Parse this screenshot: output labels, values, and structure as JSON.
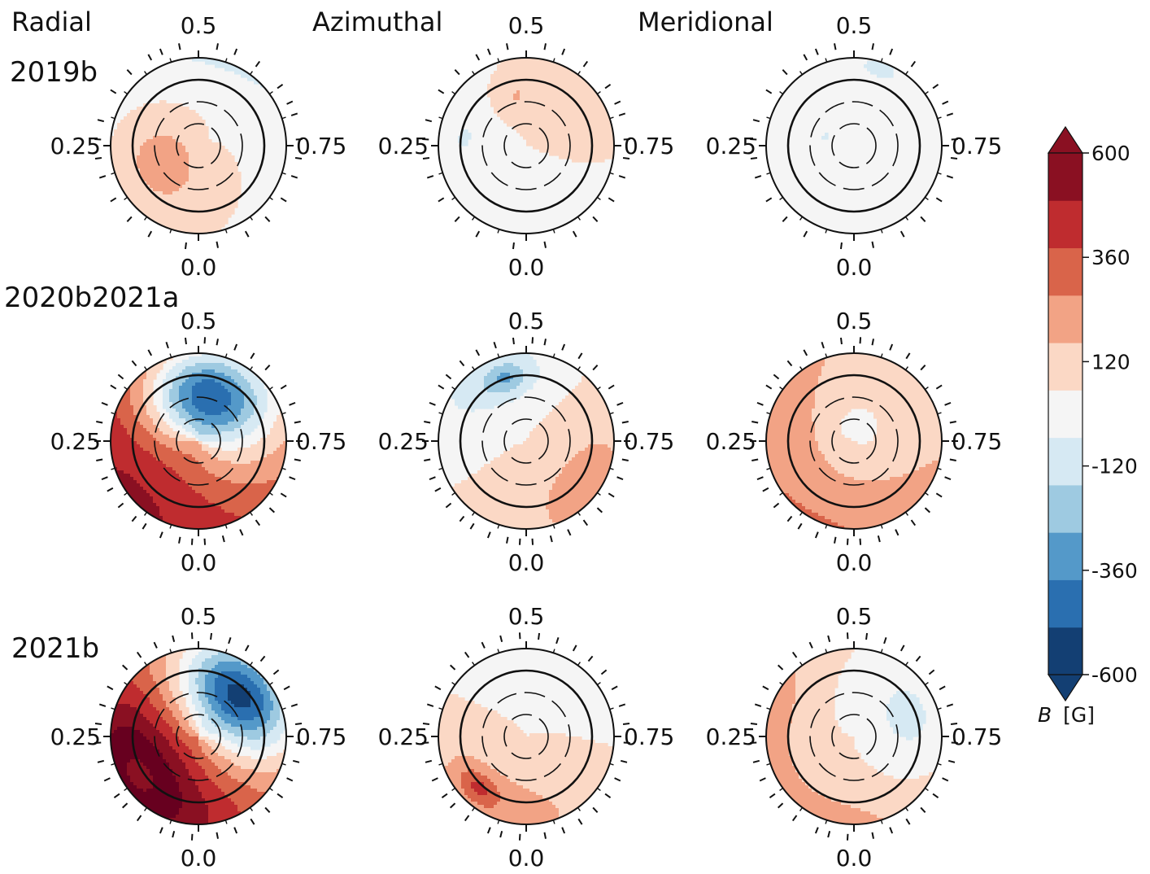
{
  "chart_data": {
    "type": "polar-contour-map-grid",
    "columns": [
      "Radial",
      "Azimuthal",
      "Meridional"
    ],
    "rows": [
      "2019b",
      "2020b2021a",
      "2021b"
    ],
    "phase_labels": {
      "top": "0.5",
      "left": "0.25",
      "right": "0.75",
      "bottom": "0.0"
    },
    "colorbar": {
      "label_prefix": "B",
      "label_unit": "[G]",
      "levels": [
        -720,
        -600,
        -480,
        -360,
        -240,
        -120,
        0,
        120,
        240,
        360,
        480,
        600,
        720
      ],
      "colors": [
        "#133f73",
        "#2a6fb0",
        "#5499c9",
        "#9ecae1",
        "#d6e9f3",
        "#f5f5f5",
        "#fbd8c5",
        "#f2a385",
        "#d9644a",
        "#bf2c2f",
        "#8a1022",
        "#67001f",
        "#053061"
      ],
      "bin_colors": [
        "#133f73",
        "#2a6fb0",
        "#5499c9",
        "#9ecae1",
        "#d6e9f3",
        "#f5f5f5",
        "#fbd8c5",
        "#f2a385",
        "#d9644a",
        "#bf2c2f",
        "#8a1022"
      ],
      "ticks": [
        "600",
        "360",
        "120",
        "-120",
        "-360",
        "-600"
      ],
      "tick_values": [
        600,
        360,
        120,
        -120,
        -360,
        -600
      ],
      "extend": "both"
    },
    "latitude_circles_deg": [
      -30,
      0,
      30,
      60
    ],
    "equator_deg": 0,
    "maps": [
      {
        "row": "2019b",
        "component": "Radial",
        "blobs": [
          {
            "phase": 0.55,
            "colat_deg": 140,
            "spread": 55,
            "value": -140
          },
          {
            "phase": 0.18,
            "colat_deg": 55,
            "spread": 45,
            "value": 170
          }
        ]
      },
      {
        "row": "2019b",
        "component": "Azimuthal",
        "blobs": [
          {
            "phase": 0.47,
            "colat_deg": 70,
            "spread": 12,
            "value": 130
          },
          {
            "phase": 0.27,
            "colat_deg": 85,
            "spread": 18,
            "value": -130
          }
        ]
      },
      {
        "row": "2019b",
        "component": "Meridional",
        "blobs": [
          {
            "phase": 0.55,
            "colat_deg": 110,
            "spread": 18,
            "value": -140
          },
          {
            "phase": 0.3,
            "colat_deg": 40,
            "spread": 7,
            "value": -150
          }
        ]
      },
      {
        "row": "2020b2021a",
        "component": "Radial",
        "blobs": [
          {
            "phase": 0.52,
            "colat_deg": 65,
            "spread": 45,
            "value": -700
          },
          {
            "phase": 0.15,
            "colat_deg": 120,
            "spread": 90,
            "value": 500
          }
        ]
      },
      {
        "row": "2020b2021a",
        "component": "Azimuthal",
        "blobs": [
          {
            "phase": 0.42,
            "colat_deg": 100,
            "spread": 45,
            "value": -160
          },
          {
            "phase": 0.45,
            "colat_deg": 90,
            "spread": 14,
            "value": -240
          },
          {
            "phase": 0.85,
            "colat_deg": 100,
            "spread": 55,
            "value": 150
          }
        ]
      },
      {
        "row": "2020b2021a",
        "component": "Meridional",
        "blobs": [
          {
            "phase": 0.25,
            "colat_deg": 120,
            "spread": 70,
            "value": 170
          },
          {
            "phase": 0.95,
            "colat_deg": 120,
            "spread": 60,
            "value": 150
          },
          {
            "phase": 0.52,
            "colat_deg": 20,
            "spread": 16,
            "value": -140
          }
        ]
      },
      {
        "row": "2021b",
        "component": "Radial",
        "blobs": [
          {
            "phase": 0.63,
            "colat_deg": 80,
            "spread": 40,
            "value": -720
          },
          {
            "phase": 0.18,
            "colat_deg": 90,
            "spread": 55,
            "value": 480
          },
          {
            "phase": 0.05,
            "colat_deg": 120,
            "spread": 90,
            "value": 300
          }
        ]
      },
      {
        "row": "2021b",
        "component": "Azimuthal",
        "blobs": [
          {
            "phase": 0.55,
            "colat_deg": 130,
            "spread": 60,
            "value": -130
          },
          {
            "phase": 0.05,
            "colat_deg": 120,
            "spread": 70,
            "value": 160
          },
          {
            "phase": 0.12,
            "colat_deg": 95,
            "spread": 14,
            "value": 260
          }
        ]
      },
      {
        "row": "2021b",
        "component": "Meridional",
        "blobs": [
          {
            "phase": 0.7,
            "colat_deg": 80,
            "spread": 45,
            "value": -150
          },
          {
            "phase": 0.3,
            "colat_deg": 120,
            "spread": 35,
            "value": 150
          },
          {
            "phase": 0.02,
            "colat_deg": 125,
            "spread": 50,
            "value": 150
          }
        ]
      }
    ],
    "observed_phases": [
      [
        0.02,
        0.08,
        0.12,
        0.16,
        0.2,
        0.23,
        0.26,
        0.29,
        0.34,
        0.38,
        0.42,
        0.44,
        0.47,
        0.53,
        0.56,
        0.6,
        0.65,
        0.68,
        0.7,
        0.74,
        0.77,
        0.8,
        0.84,
        0.88,
        0.92,
        0.97
      ],
      [
        0.01,
        0.03,
        0.06,
        0.09,
        0.11,
        0.14,
        0.17,
        0.19,
        0.22,
        0.25,
        0.28,
        0.31,
        0.34,
        0.36,
        0.39,
        0.42,
        0.45,
        0.48,
        0.51,
        0.53,
        0.56,
        0.59,
        0.62,
        0.66,
        0.69,
        0.72,
        0.75,
        0.78,
        0.81,
        0.84,
        0.87,
        0.9,
        0.93,
        0.96,
        0.99
      ],
      [
        0.01,
        0.04,
        0.06,
        0.1,
        0.13,
        0.15,
        0.18,
        0.21,
        0.24,
        0.27,
        0.3,
        0.33,
        0.37,
        0.4,
        0.43,
        0.46,
        0.49,
        0.52,
        0.55,
        0.58,
        0.61,
        0.64,
        0.67,
        0.7,
        0.73,
        0.76,
        0.79,
        0.82,
        0.85,
        0.88,
        0.91,
        0.94,
        0.97
      ]
    ]
  }
}
